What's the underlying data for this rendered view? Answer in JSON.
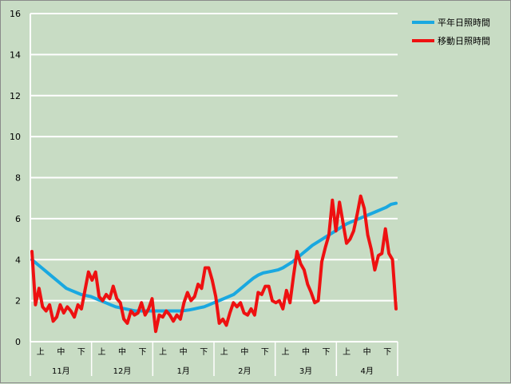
{
  "chart_data": {
    "type": "line",
    "title": "",
    "xlabel": "",
    "ylabel": "",
    "ylim": [
      0,
      16
    ],
    "yticks": [
      0,
      2,
      4,
      6,
      8,
      10,
      12,
      14,
      16
    ],
    "grid": "horizontal",
    "legend_position": "top-right",
    "x_sub_labels": [
      "上",
      "中",
      "下",
      "上",
      "中",
      "下",
      "上",
      "中",
      "下",
      "上",
      "中",
      "下",
      "上",
      "中",
      "下",
      "上",
      "中",
      "下"
    ],
    "x_group_labels": [
      "11月",
      "12月",
      "1月",
      "2月",
      "3月",
      "4月"
    ],
    "series": [
      {
        "name": "平年日照時間",
        "color": "#1aa8e0",
        "values": [
          4.0,
          3.8,
          3.6,
          3.4,
          3.2,
          3.0,
          2.8,
          2.6,
          2.5,
          2.4,
          2.3,
          2.25,
          2.2,
          2.1,
          2.0,
          1.9,
          1.8,
          1.7,
          1.65,
          1.6,
          1.55,
          1.5,
          1.5,
          1.5,
          1.5,
          1.5,
          1.5,
          1.5,
          1.5,
          1.5,
          1.5,
          1.52,
          1.55,
          1.6,
          1.65,
          1.7,
          1.8,
          1.9,
          2.0,
          2.1,
          2.2,
          2.3,
          2.5,
          2.7,
          2.9,
          3.1,
          3.25,
          3.35,
          3.4,
          3.45,
          3.5,
          3.6,
          3.75,
          3.9,
          4.1,
          4.3,
          4.5,
          4.7,
          4.85,
          5.0,
          5.15,
          5.3,
          5.45,
          5.6,
          5.75,
          5.85,
          5.95,
          6.05,
          6.15,
          6.25,
          6.35,
          6.45,
          6.55,
          6.7,
          6.75
        ]
      },
      {
        "name": "移動日照時間",
        "color": "#ee1111",
        "values": [
          4.4,
          1.8,
          2.6,
          1.7,
          1.5,
          1.8,
          1.0,
          1.2,
          1.8,
          1.4,
          1.7,
          1.5,
          1.2,
          1.8,
          1.6,
          2.5,
          3.4,
          3.0,
          3.4,
          2.2,
          2.0,
          2.3,
          2.1,
          2.7,
          2.1,
          1.9,
          1.1,
          0.9,
          1.5,
          1.3,
          1.4,
          1.9,
          1.3,
          1.6,
          2.1,
          0.5,
          1.3,
          1.2,
          1.5,
          1.3,
          1.0,
          1.3,
          1.1,
          1.9,
          2.4,
          2.0,
          2.2,
          2.8,
          2.6,
          3.6,
          3.6,
          3.0,
          2.2,
          0.9,
          1.1,
          0.8,
          1.4,
          1.9,
          1.7,
          1.9,
          1.4,
          1.3,
          1.6,
          1.3,
          2.4,
          2.3,
          2.7,
          2.7,
          2.0,
          1.9,
          2.0,
          1.6,
          2.5,
          1.9,
          3.2,
          4.4,
          3.8,
          3.5,
          2.8,
          2.4,
          1.9,
          2.0,
          3.9,
          4.6,
          5.2,
          6.9,
          5.4,
          6.8,
          5.8,
          4.8,
          5.0,
          5.4,
          6.2,
          7.1,
          6.5,
          5.2,
          4.5,
          3.5,
          4.2,
          4.3,
          5.5,
          4.3,
          4.0,
          1.6
        ]
      }
    ]
  }
}
